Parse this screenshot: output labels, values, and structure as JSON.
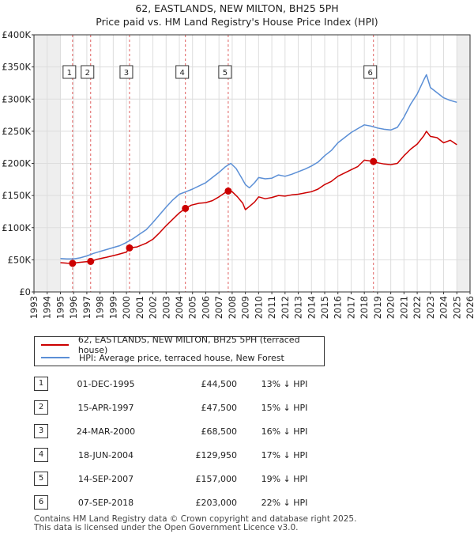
{
  "title_line1": "62, EASTLANDS, NEW MILTON, BH25 5PH",
  "title_line2": "Price paid vs. HM Land Registry's House Price Index (HPI)",
  "chart_data": {
    "type": "line",
    "title": "62, EASTLANDS, NEW MILTON, BH25 5PH — Price paid vs. HM Land Registry's House Price Index (HPI)",
    "xlabel": "",
    "ylabel": "",
    "xlim": [
      1993,
      2026
    ],
    "ylim": [
      0,
      400000
    ],
    "x_ticks": [
      "1993",
      "1994",
      "1995",
      "1996",
      "1997",
      "1998",
      "1999",
      "2000",
      "2001",
      "2002",
      "2003",
      "2004",
      "2005",
      "2006",
      "2007",
      "2008",
      "2009",
      "2010",
      "2011",
      "2012",
      "2013",
      "2014",
      "2015",
      "2016",
      "2017",
      "2018",
      "2019",
      "2020",
      "2021",
      "2022",
      "2023",
      "2024",
      "2025",
      "2026"
    ],
    "y_ticks": [
      {
        "value": 0,
        "label": "£0"
      },
      {
        "value": 50000,
        "label": "£50K"
      },
      {
        "value": 100000,
        "label": "£100K"
      },
      {
        "value": 150000,
        "label": "£150K"
      },
      {
        "value": 200000,
        "label": "£200K"
      },
      {
        "value": 250000,
        "label": "£250K"
      },
      {
        "value": 300000,
        "label": "£300K"
      },
      {
        "value": 350000,
        "label": "£350K"
      },
      {
        "value": 400000,
        "label": "£400K"
      }
    ],
    "grid": true,
    "shaded_ranges": [
      [
        1993,
        1995.0
      ],
      [
        2025.0,
        2026
      ]
    ],
    "series": [
      {
        "name": "62, EASTLANDS, NEW MILTON, BH25 5PH (terraced house)",
        "color": "#cc0000",
        "x": [
          1995.0,
          1995.5,
          1995.92,
          1996.3,
          1996.8,
          1997.29,
          1997.8,
          1998.5,
          1999.3,
          2000.0,
          2000.23,
          2000.8,
          2001.5,
          2002.0,
          2002.5,
          2003.0,
          2003.5,
          2004.0,
          2004.46,
          2004.9,
          2005.5,
          2006.0,
          2006.5,
          2007.0,
          2007.5,
          2007.7,
          2008.0,
          2008.4,
          2008.8,
          2009.0,
          2009.3,
          2009.7,
          2010.0,
          2010.5,
          2011.0,
          2011.5,
          2012.0,
          2012.5,
          2013.0,
          2013.5,
          2014.0,
          2014.5,
          2015.0,
          2015.5,
          2016.0,
          2016.5,
          2017.0,
          2017.5,
          2018.0,
          2018.69,
          2019.0,
          2019.5,
          2020.0,
          2020.5,
          2021.0,
          2021.5,
          2022.0,
          2022.5,
          2022.7,
          2023.0,
          2023.5,
          2024.0,
          2024.5,
          2025.0
        ],
        "y": [
          45500,
          44800,
          44500,
          45600,
          46800,
          47500,
          51000,
          54000,
          58000,
          62000,
          68500,
          70000,
          76000,
          82000,
          92000,
          103000,
          113000,
          123000,
          129950,
          135000,
          138000,
          139000,
          142000,
          148000,
          155000,
          157000,
          156000,
          148000,
          138000,
          128000,
          133000,
          140000,
          148000,
          145000,
          147000,
          150000,
          149000,
          151000,
          152000,
          154000,
          156000,
          160000,
          167000,
          172000,
          180000,
          185000,
          190000,
          195000,
          205000,
          203000,
          201000,
          199000,
          198000,
          200000,
          212000,
          222000,
          230000,
          243000,
          250000,
          242000,
          240000,
          232000,
          236000,
          229000
        ]
      },
      {
        "name": "HPI: Average price, terraced house, New Forest",
        "color": "#5b8fd6",
        "x": [
          1995.0,
          1995.5,
          1996.0,
          1996.5,
          1997.0,
          1997.5,
          1998.0,
          1998.5,
          1999.0,
          1999.5,
          2000.0,
          2000.5,
          2001.0,
          2001.5,
          2002.0,
          2002.5,
          2003.0,
          2003.5,
          2004.0,
          2004.5,
          2005.0,
          2005.5,
          2006.0,
          2006.5,
          2007.0,
          2007.5,
          2007.9,
          2008.3,
          2008.7,
          2009.0,
          2009.3,
          2009.7,
          2010.0,
          2010.5,
          2011.0,
          2011.5,
          2012.0,
          2012.5,
          2013.0,
          2013.5,
          2014.0,
          2014.5,
          2015.0,
          2015.5,
          2016.0,
          2016.5,
          2017.0,
          2017.5,
          2018.0,
          2018.5,
          2019.0,
          2019.5,
          2020.0,
          2020.5,
          2021.0,
          2021.5,
          2022.0,
          2022.5,
          2022.7,
          2023.0,
          2023.5,
          2024.0,
          2024.5,
          2025.0
        ],
        "y": [
          52000,
          51500,
          51500,
          53000,
          56000,
          60000,
          63000,
          66000,
          69000,
          72000,
          77000,
          83000,
          90000,
          97000,
          108000,
          120000,
          132000,
          143000,
          152000,
          156000,
          160000,
          165000,
          170000,
          178000,
          186000,
          195000,
          200000,
          192000,
          178000,
          167000,
          162000,
          170000,
          178000,
          176000,
          177000,
          182000,
          180000,
          183000,
          187000,
          191000,
          196000,
          202000,
          212000,
          220000,
          232000,
          240000,
          248000,
          254000,
          260000,
          258000,
          255000,
          253000,
          252000,
          256000,
          272000,
          292000,
          308000,
          330000,
          338000,
          318000,
          310000,
          302000,
          298000,
          295000
        ]
      }
    ],
    "sales": [
      {
        "num": "1",
        "x": 1995.92,
        "value": 44500
      },
      {
        "num": "2",
        "x": 1997.29,
        "value": 47500
      },
      {
        "num": "3",
        "x": 2000.23,
        "value": 68500
      },
      {
        "num": "4",
        "x": 2004.46,
        "value": 129950
      },
      {
        "num": "5",
        "x": 2007.7,
        "value": 157000
      },
      {
        "num": "6",
        "x": 2018.69,
        "value": 203000
      }
    ],
    "legend_position": "bottom"
  },
  "legend": {
    "series1": "62, EASTLANDS, NEW MILTON, BH25 5PH (terraced house)",
    "series2": "HPI: Average price, terraced house, New Forest"
  },
  "colors": {
    "price_paid": "#cc0000",
    "hpi": "#5b8fd6",
    "grid": "#dddddd",
    "shade": "#eeeeee"
  },
  "sales_table": [
    {
      "num": "1",
      "date": "01-DEC-1995",
      "price": "£44,500",
      "hpi": "13% ↓ HPI"
    },
    {
      "num": "2",
      "date": "15-APR-1997",
      "price": "£47,500",
      "hpi": "15% ↓ HPI"
    },
    {
      "num": "3",
      "date": "24-MAR-2000",
      "price": "£68,500",
      "hpi": "16% ↓ HPI"
    },
    {
      "num": "4",
      "date": "18-JUN-2004",
      "price": "£129,950",
      "hpi": "17% ↓ HPI"
    },
    {
      "num": "5",
      "date": "14-SEP-2007",
      "price": "£157,000",
      "hpi": "19% ↓ HPI"
    },
    {
      "num": "6",
      "date": "07-SEP-2018",
      "price": "£203,000",
      "hpi": "22% ↓ HPI"
    }
  ],
  "footer": {
    "line1": "Contains HM Land Registry data © Crown copyright and database right 2025.",
    "line2": "This data is licensed under the Open Government Licence v3.0."
  }
}
